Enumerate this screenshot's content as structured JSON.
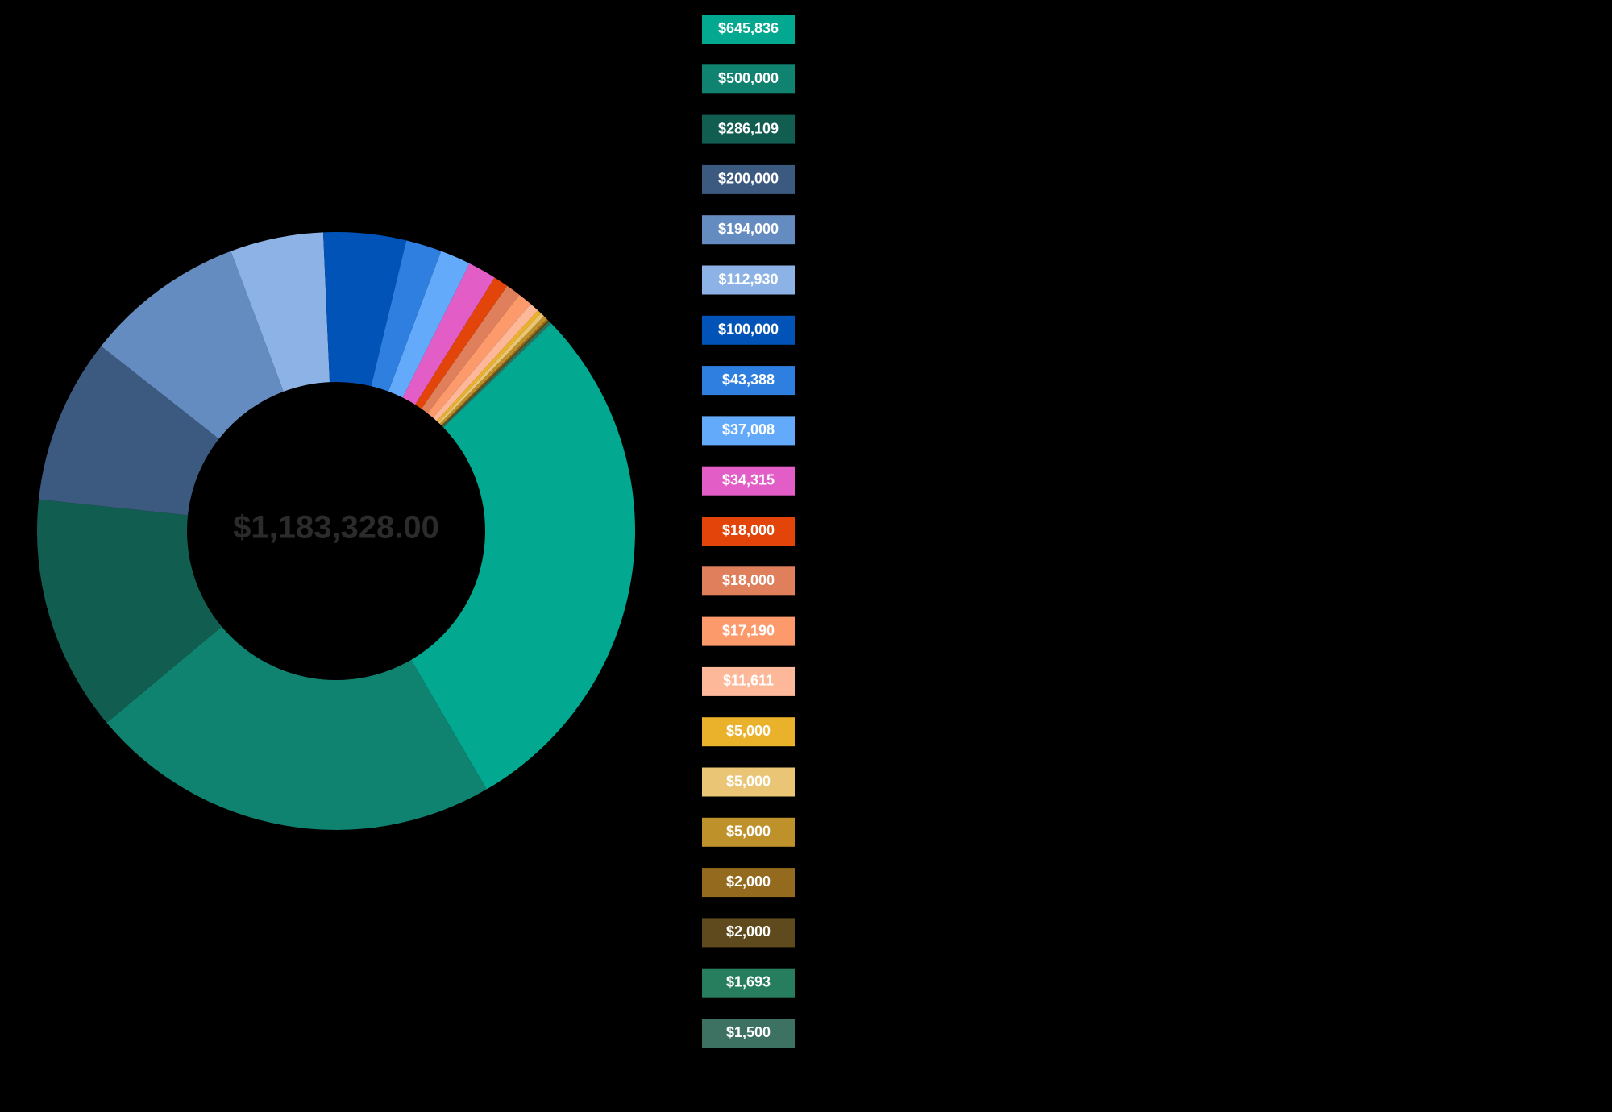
{
  "chart_data": {
    "type": "donut",
    "center_label": "$1,183,328.00",
    "values": [
      645836,
      500000,
      286109,
      200000,
      194000,
      112930,
      100000,
      43388,
      37008,
      34315,
      18000,
      18000,
      17190,
      11611,
      5000,
      5000,
      5000,
      2000,
      2000,
      1693,
      1500
    ],
    "value_labels": [
      "$645,836",
      "$500,000",
      "$286,109",
      "$200,000",
      "$194,000",
      "$112,930",
      "$100,000",
      "$43,388",
      "$37,008",
      "$34,315",
      "$18,000",
      "$18,000",
      "$17,190",
      "$11,611",
      "$5,000",
      "$5,000",
      "$5,000",
      "$2,000",
      "$2,000",
      "$1,693",
      "$1,500"
    ],
    "colors": [
      "#02a88f",
      "#108270",
      "#115e50",
      "#3c5a80",
      "#658cc0",
      "#8db3e6",
      "#0253b8",
      "#2e7fe0",
      "#63abfa",
      "#e25ec6",
      "#e2440a",
      "#df7f5c",
      "#fd9a6c",
      "#fdb89a",
      "#eab12a",
      "#e9c575",
      "#bf912b",
      "#936a1e",
      "#5e4a1c",
      "#267e5f",
      "#3d7262"
    ]
  }
}
